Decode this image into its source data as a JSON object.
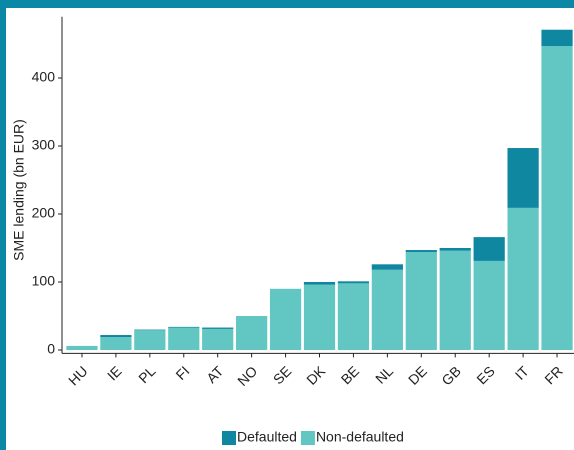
{
  "chart_data": {
    "type": "stacked_bar",
    "y_label": "SME lending (bn EUR)",
    "categories": [
      "HU",
      "IE",
      "PL",
      "FI",
      "AT",
      "NO",
      "SE",
      "DK",
      "BE",
      "NL",
      "DE",
      "GB",
      "ES",
      "IT",
      "FR"
    ],
    "series": [
      {
        "name": "Defaulted",
        "color": "#0f87a1",
        "values": [
          0,
          3,
          1,
          1,
          2,
          0,
          0,
          4,
          3,
          8,
          3,
          4,
          35,
          88,
          24
        ]
      },
      {
        "name": "Non-defaulted",
        "color": "#62c7c3",
        "values": [
          6,
          19,
          29,
          33,
          31,
          50,
          90,
          96,
          98,
          118,
          144,
          146,
          131,
          209,
          447
        ]
      }
    ],
    "ylim": [
      -5,
      490
    ],
    "yticks": [
      0,
      100,
      200,
      300,
      400
    ],
    "legend": "bottom"
  }
}
